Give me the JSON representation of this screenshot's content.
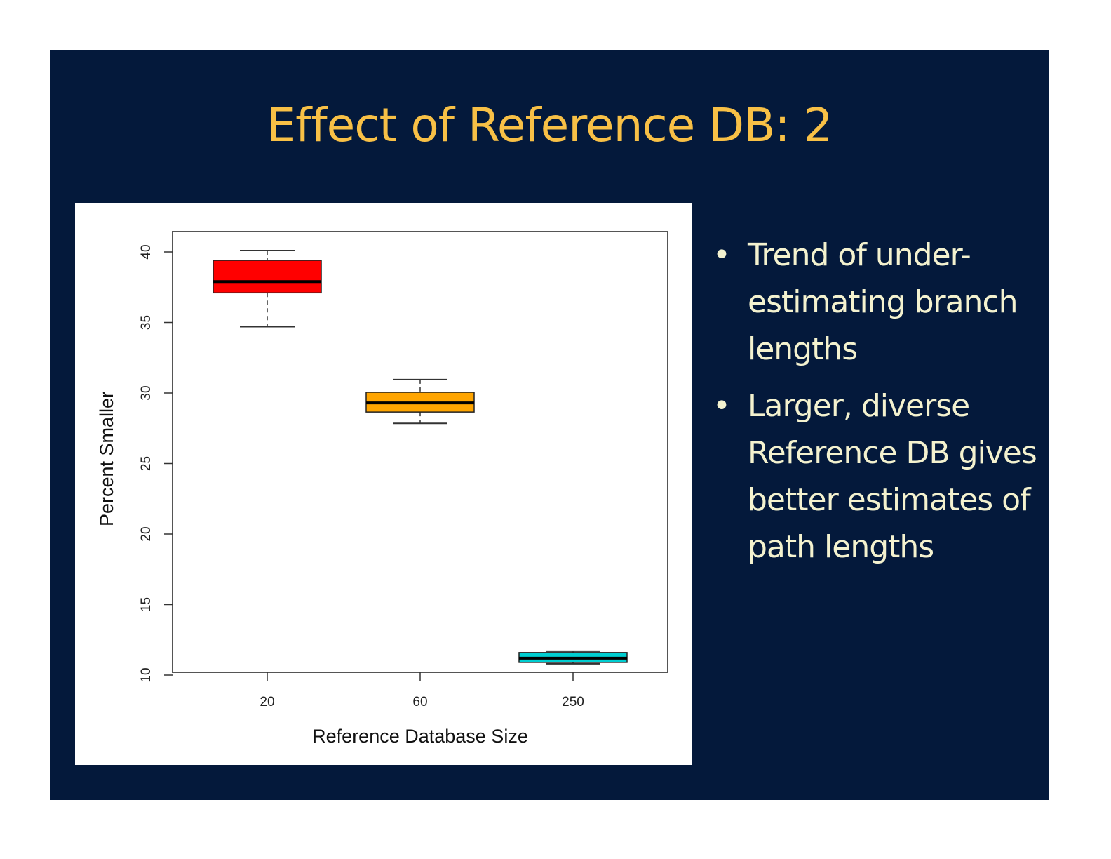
{
  "slide": {
    "title": "Effect of Reference DB: 2",
    "bullets": [
      "Trend of under-estimating branch lengths",
      "Larger, diverse Reference DB gives better estimates of path lengths"
    ],
    "colors": {
      "background": "#04193b",
      "title": "#f8c046",
      "text": "#f4f2cf"
    }
  },
  "chart_data": {
    "type": "boxplot",
    "title": "",
    "xlabel": "Reference Database Size",
    "ylabel": "Percent Smaller",
    "ylim": [
      9.8,
      40.9
    ],
    "yticks": [
      10,
      15,
      20,
      25,
      30,
      35,
      40
    ],
    "categories": [
      "20",
      "60",
      "250"
    ],
    "boxes": [
      {
        "category": "20",
        "whisker_low": 34.7,
        "q1": 37.1,
        "median": 37.9,
        "q3": 39.4,
        "whisker_high": 40.1,
        "color": "#ff0000"
      },
      {
        "category": "60",
        "whisker_low": 27.85,
        "q1": 28.65,
        "median": 29.3,
        "q3": 30.05,
        "whisker_high": 30.95,
        "color": "#ffa500"
      },
      {
        "category": "250",
        "whisker_low": 10.8,
        "q1": 10.9,
        "median": 11.2,
        "q3": 11.6,
        "whisker_high": 11.7,
        "color": "#00ced1"
      }
    ],
    "grid": false
  }
}
